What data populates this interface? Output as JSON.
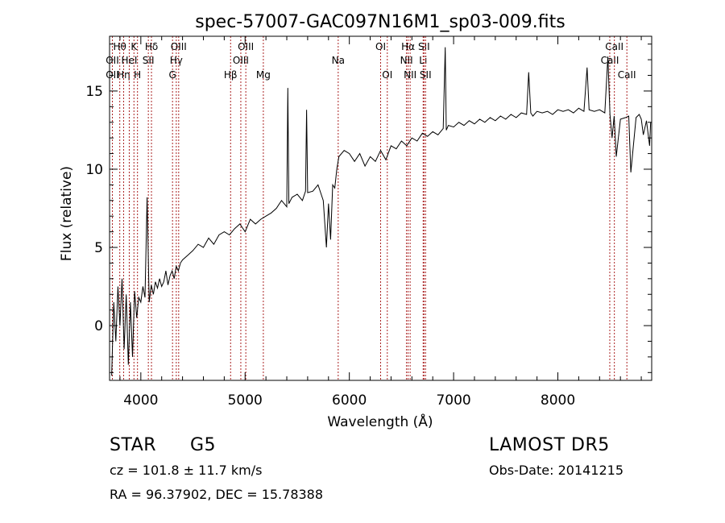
{
  "chart_data": {
    "type": "line",
    "title": "spec-57007-GAC097N16M1_sp03-009.fits",
    "xlabel": "Wavelength (Å)",
    "ylabel": "Flux (relative)",
    "xlim": [
      3700,
      8900
    ],
    "ylim": [
      -3.5,
      18.5
    ],
    "xticks": [
      4000,
      5000,
      6000,
      7000,
      8000
    ],
    "yticks": [
      0,
      5,
      10,
      15
    ],
    "grid": false,
    "line_color": "#000000",
    "marker_color": "#aa2222",
    "series": [
      {
        "x": [
          3720,
          3740,
          3760,
          3780,
          3800,
          3820,
          3840,
          3860,
          3880,
          3900,
          3920,
          3940,
          3960,
          3980,
          4000,
          4020,
          4040,
          4060,
          4080,
          4100,
          4120,
          4140,
          4160,
          4180,
          4200,
          4220,
          4240,
          4260,
          4280,
          4300,
          4320,
          4340,
          4360,
          4380,
          4400,
          4450,
          4500,
          4550,
          4600,
          4650,
          4700,
          4750,
          4800,
          4850,
          4900,
          4950,
          5000,
          5050,
          5100,
          5150,
          5200,
          5250,
          5300,
          5350,
          5400,
          5410,
          5420,
          5450,
          5500,
          5550,
          5580,
          5590,
          5600,
          5650,
          5700,
          5750,
          5780,
          5800,
          5820,
          5840,
          5860,
          5880,
          5900,
          5950,
          6000,
          6050,
          6100,
          6150,
          6200,
          6250,
          6300,
          6350,
          6400,
          6450,
          6500,
          6550,
          6600,
          6650,
          6700,
          6750,
          6800,
          6850,
          6900,
          6920,
          6930,
          6950,
          7000,
          7050,
          7100,
          7150,
          7200,
          7250,
          7300,
          7350,
          7400,
          7450,
          7500,
          7550,
          7600,
          7650,
          7700,
          7720,
          7740,
          7760,
          7800,
          7850,
          7900,
          7950,
          8000,
          8050,
          8100,
          8150,
          8200,
          8250,
          8280,
          8300,
          8350,
          8400,
          8450,
          8480,
          8500,
          8520,
          8540,
          8560,
          8600,
          8650,
          8680,
          8700,
          8750,
          8780,
          8800,
          8820,
          8850,
          8880,
          8890
        ],
        "y": [
          -3.2,
          1.5,
          -1.0,
          2.5,
          0.0,
          3.0,
          -1.5,
          2.0,
          -2.5,
          1.5,
          -2.0,
          2.2,
          0.5,
          1.8,
          1.5,
          2.5,
          1.8,
          8.2,
          1.5,
          2.6,
          2.0,
          2.8,
          2.4,
          3.0,
          2.5,
          2.8,
          3.5,
          2.6,
          3.2,
          3.5,
          3.0,
          3.8,
          3.5,
          4.0,
          4.2,
          4.5,
          4.8,
          5.2,
          5.0,
          5.6,
          5.2,
          5.8,
          6.0,
          5.8,
          6.2,
          6.5,
          6.0,
          6.8,
          6.5,
          6.8,
          7.0,
          7.2,
          7.5,
          8.0,
          7.6,
          15.2,
          7.8,
          8.2,
          8.4,
          8.0,
          8.6,
          13.8,
          8.5,
          8.6,
          9.0,
          8.0,
          5.0,
          7.8,
          5.5,
          9.0,
          8.8,
          10.0,
          10.8,
          11.2,
          11.0,
          10.5,
          11.0,
          10.2,
          10.8,
          10.5,
          11.2,
          10.6,
          11.5,
          11.3,
          11.8,
          11.5,
          12.0,
          11.8,
          12.3,
          12.1,
          12.4,
          12.2,
          12.6,
          17.8,
          12.5,
          12.8,
          12.7,
          13.0,
          12.8,
          13.1,
          12.9,
          13.2,
          13.0,
          13.3,
          13.1,
          13.4,
          13.2,
          13.5,
          13.3,
          13.6,
          13.5,
          16.2,
          13.6,
          13.4,
          13.7,
          13.6,
          13.7,
          13.5,
          13.8,
          13.7,
          13.8,
          13.6,
          13.9,
          13.7,
          16.5,
          13.8,
          13.7,
          13.8,
          13.6,
          17.2,
          13.5,
          12.0,
          13.4,
          10.8,
          13.2,
          13.3,
          13.4,
          9.8,
          13.3,
          13.5,
          13.2,
          12.2,
          13.1,
          11.5,
          13.0
        ]
      }
    ],
    "line_markers": [
      {
        "x": 3727,
        "label": "OII",
        "row": 2
      },
      {
        "x": 3727,
        "label": "OII",
        "row": 3
      },
      {
        "x": 3798,
        "label": "Hθ",
        "row": 1
      },
      {
        "x": 3835,
        "label": "Hη",
        "row": 3
      },
      {
        "x": 3889,
        "label": "HeI",
        "row": 2
      },
      {
        "x": 3934,
        "label": "K",
        "row": 1
      },
      {
        "x": 3968,
        "label": "H",
        "row": 3
      },
      {
        "x": 4072,
        "label": "SII",
        "row": 2
      },
      {
        "x": 4102,
        "label": "Hδ",
        "row": 1
      },
      {
        "x": 4304,
        "label": "G",
        "row": 3
      },
      {
        "x": 4340,
        "label": "Hγ",
        "row": 2
      },
      {
        "x": 4363,
        "label": "OIII",
        "row": 1
      },
      {
        "x": 4861,
        "label": "Hβ",
        "row": 3
      },
      {
        "x": 4959,
        "label": "OIII",
        "row": 2
      },
      {
        "x": 5007,
        "label": "OIII",
        "row": 1
      },
      {
        "x": 5175,
        "label": "Mg",
        "row": 3
      },
      {
        "x": 5893,
        "label": "Na",
        "row": 2
      },
      {
        "x": 6300,
        "label": "OI",
        "row": 1
      },
      {
        "x": 6364,
        "label": "OI",
        "row": 3
      },
      {
        "x": 6548,
        "label": "NII",
        "row": 2
      },
      {
        "x": 6563,
        "label": "Hα",
        "row": 1
      },
      {
        "x": 6583,
        "label": "NII",
        "row": 3
      },
      {
        "x": 6708,
        "label": "Li",
        "row": 2
      },
      {
        "x": 6716,
        "label": "SII",
        "row": 1
      },
      {
        "x": 6731,
        "label": "SII",
        "row": 3
      },
      {
        "x": 8498,
        "label": "CaII",
        "row": 2
      },
      {
        "x": 8542,
        "label": "CaII",
        "row": 1
      },
      {
        "x": 8662,
        "label": "CaII",
        "row": 3
      }
    ]
  },
  "info": {
    "class_label": "STAR",
    "subclass": "G5",
    "survey": "LAMOST DR5",
    "redshift": "cz = 101.8 ± 11.7 km/s",
    "obs_date": "Obs-Date: 20141215",
    "coords": "RA =  96.37902, DEC =  15.78388"
  }
}
